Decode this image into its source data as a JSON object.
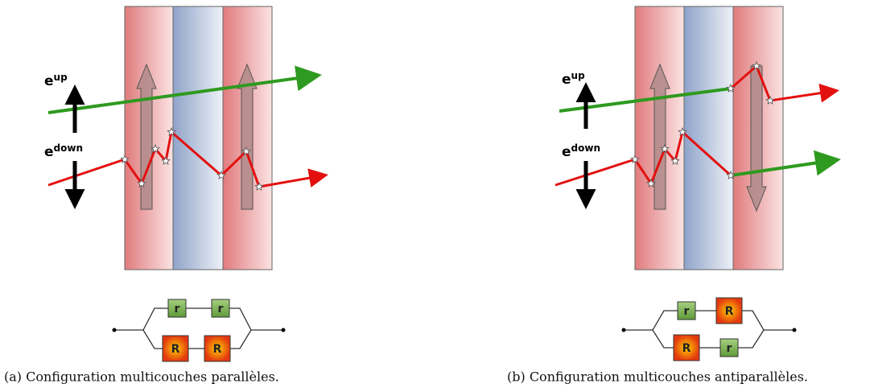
{
  "panels": [
    {
      "spin_labels": {
        "up": {
          "base": "e",
          "sup": "up"
        },
        "down": {
          "base": "e",
          "sup": "down"
        }
      },
      "circuit": {
        "top": [
          "r",
          "r"
        ],
        "bottom": [
          "R",
          "R"
        ]
      },
      "caption": "(a) Configuration multicouches parallèles."
    },
    {
      "spin_labels": {
        "up": {
          "base": "e",
          "sup": "up"
        },
        "down": {
          "base": "e",
          "sup": "down"
        }
      },
      "circuit": {
        "top": [
          "r",
          "R"
        ],
        "bottom": [
          "R",
          "r"
        ]
      },
      "caption": "(b) Configuration multicouches antiparallèles."
    }
  ]
}
